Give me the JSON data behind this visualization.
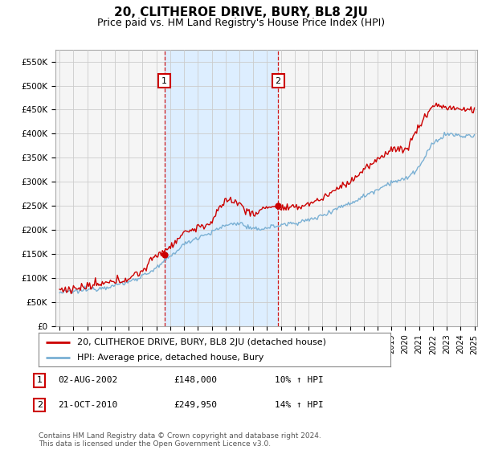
{
  "title": "20, CLITHEROE DRIVE, BURY, BL8 2JU",
  "subtitle": "Price paid vs. HM Land Registry's House Price Index (HPI)",
  "title_fontsize": 11,
  "subtitle_fontsize": 9,
  "background_color": "#ffffff",
  "grid_color": "#cccccc",
  "plot_bg": "#f5f5f5",
  "red_line_color": "#cc0000",
  "blue_line_color": "#7ab0d4",
  "shade_color": "#ddeeff",
  "ylim": [
    0,
    575000
  ],
  "yticks": [
    0,
    50000,
    100000,
    150000,
    200000,
    250000,
    300000,
    350000,
    400000,
    450000,
    500000,
    550000
  ],
  "ytick_labels": [
    "£0",
    "£50K",
    "£100K",
    "£150K",
    "£200K",
    "£250K",
    "£300K",
    "£350K",
    "£400K",
    "£450K",
    "£500K",
    "£550K"
  ],
  "sale1_x": 2002.58,
  "sale1_y": 148000,
  "sale1_label": "1",
  "sale1_date": "02-AUG-2002",
  "sale1_price": "£148,000",
  "sale1_hpi": "10% ↑ HPI",
  "sale2_x": 2010.8,
  "sale2_y": 249950,
  "sale2_label": "2",
  "sale2_date": "21-OCT-2010",
  "sale2_price": "£249,950",
  "sale2_hpi": "14% ↑ HPI",
  "legend_label_red": "20, CLITHEROE DRIVE, BURY, BL8 2JU (detached house)",
  "legend_label_blue": "HPI: Average price, detached house, Bury",
  "footer": "Contains HM Land Registry data © Crown copyright and database right 2024.\nThis data is licensed under the Open Government Licence v3.0.",
  "xmin": 1995,
  "xmax": 2025.0,
  "hpi_key_years": [
    1995,
    1996,
    1997,
    1998,
    1999,
    2000,
    2001,
    2002,
    2003,
    2004,
    2005,
    2006,
    2007,
    2008,
    2009,
    2010,
    2011,
    2012,
    2013,
    2014,
    2015,
    2016,
    2017,
    2018,
    2019,
    2020,
    2021,
    2022,
    2023,
    2024,
    2025
  ],
  "hpi_key_vals": [
    70000,
    72000,
    76000,
    80000,
    85000,
    92000,
    105000,
    120000,
    145000,
    170000,
    185000,
    195000,
    210000,
    215000,
    200000,
    205000,
    210000,
    215000,
    220000,
    230000,
    245000,
    255000,
    270000,
    285000,
    300000,
    305000,
    330000,
    380000,
    400000,
    395000,
    395000
  ],
  "red_key_years": [
    1995,
    1996,
    1997,
    1998,
    1999,
    2000,
    2001,
    2002,
    2003,
    2004,
    2005,
    2006,
    2007,
    2008,
    2009,
    2010,
    2011,
    2012,
    2013,
    2014,
    2015,
    2016,
    2017,
    2018,
    2019,
    2020,
    2021,
    2022,
    2023,
    2024,
    2025
  ],
  "red_key_vals": [
    75000,
    78000,
    82000,
    87000,
    92000,
    100000,
    115000,
    148000,
    165000,
    195000,
    205000,
    215000,
    265000,
    255000,
    230000,
    250000,
    245000,
    245000,
    255000,
    265000,
    285000,
    300000,
    325000,
    345000,
    370000,
    365000,
    415000,
    460000,
    455000,
    450000,
    450000
  ]
}
